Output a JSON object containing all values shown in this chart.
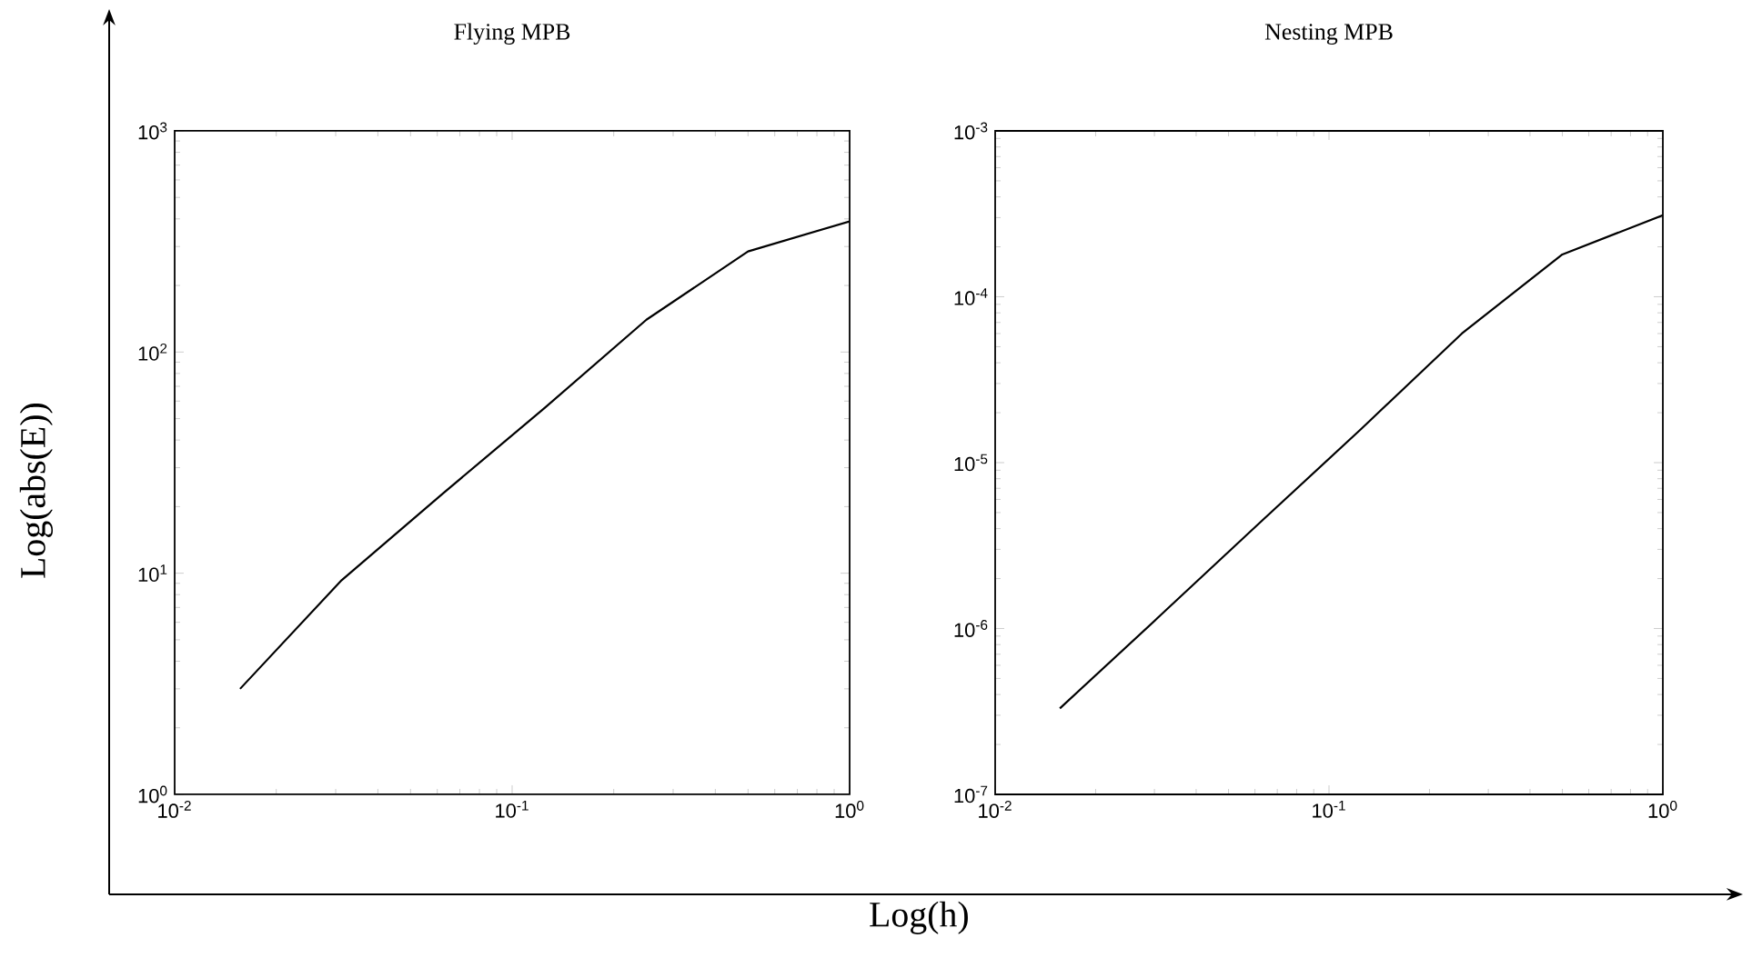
{
  "chart_data": [
    {
      "type": "line",
      "title": "Flying MPB",
      "ylabel": "Log(abs(E))",
      "log": "xy",
      "grid": false,
      "x": [
        0.015625,
        0.03125,
        0.0625,
        0.125,
        0.25,
        0.5,
        1
      ],
      "series": [
        {
          "color": "#000000",
          "values": [
            3.0,
            9.3,
            23,
            56,
            140,
            285,
            390
          ]
        }
      ],
      "xlim": [
        0.01,
        1
      ],
      "ylim": [
        1,
        1000
      ],
      "xticks": [
        {
          "value": 0.01,
          "label": "10$^{-2}$"
        },
        {
          "value": 0.1,
          "label": "10$^{-1}$"
        },
        {
          "value": 1,
          "label": "10$^{0}$"
        }
      ],
      "yticks": [
        {
          "value": 1,
          "label": "10$^{0}$"
        },
        {
          "value": 10,
          "label": "10$^{1}$"
        },
        {
          "value": 100,
          "label": "10$^{2}$"
        },
        {
          "value": 1000,
          "label": "10$^{3}$"
        }
      ]
    },
    {
      "type": "line",
      "title": "Nesting MPB",
      "xlabel": "Log(h)",
      "log": "xy",
      "grid": false,
      "x": [
        0.015625,
        0.03125,
        0.0625,
        0.125,
        0.25,
        0.5,
        1
      ],
      "series": [
        {
          "color": "#000000",
          "values": [
            3.3e-07,
            1.2e-06,
            4.4e-06,
            1.6e-05,
            6e-05,
            0.00018,
            0.00031
          ]
        }
      ],
      "xlim": [
        0.01,
        1
      ],
      "ylim": [
        1e-07,
        0.001
      ],
      "xticks": [
        {
          "value": 0.01,
          "label": "10$^{-2}$"
        },
        {
          "value": 0.1,
          "label": "10$^{-1}$"
        },
        {
          "value": 1,
          "label": "10$^{0}$"
        }
      ],
      "yticks": [
        {
          "value": 1e-07,
          "label": "10$^{-7}$"
        },
        {
          "value": 1e-06,
          "label": "10$^{-6}$"
        },
        {
          "value": 1e-05,
          "label": "10$^{-5}$"
        },
        {
          "value": 0.0001,
          "label": "10$^{-4}$"
        },
        {
          "value": 0.001,
          "label": "10$^{-3}$"
        }
      ]
    }
  ]
}
